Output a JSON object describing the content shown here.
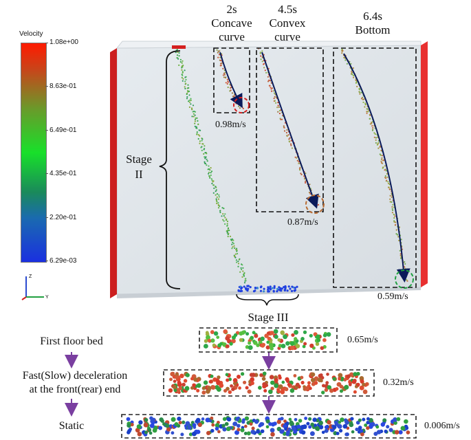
{
  "colorbar": {
    "title": "Velocity",
    "labels": [
      "1.08e+00",
      "8.63e-01",
      "6.49e-01",
      "4.35e-01",
      "2.20e-01",
      "6.29e-03"
    ],
    "colors": {
      "top": "#ff1a00",
      "middle": "#18e02a",
      "bottom": "#1a30e0"
    }
  },
  "axis_triad": {
    "z": "Z",
    "y": "Y",
    "x": "X"
  },
  "snapshots": [
    {
      "time": "2s",
      "shape": "Concave",
      "shape2": "curve",
      "speed": "0.98m/s",
      "marker_color": "#d42020"
    },
    {
      "time": "4.5s",
      "shape": "Convex",
      "shape2": "curve",
      "speed": "0.87m/s",
      "marker_color": "#c07030"
    },
    {
      "time": "6.4s",
      "shape": "Bottom",
      "shape2": "",
      "speed": "0.59m/s",
      "marker_color": "#20a040"
    }
  ],
  "stages": {
    "stage2_line1": "Stage",
    "stage2_line2": "II",
    "stage3": "Stage III"
  },
  "flow": {
    "step1": "First floor bed",
    "step2_line1": "Fast(Slow) deceleration",
    "step2_line2": "at the front(rear) end",
    "step3": "Static",
    "arrow_color": "#7a3fa0"
  },
  "beds": [
    {
      "speed": "0.65m/s",
      "dominant": "green-red"
    },
    {
      "speed": "0.32m/s",
      "dominant": "red"
    },
    {
      "speed": "0.006m/s",
      "dominant": "blue"
    }
  ]
}
